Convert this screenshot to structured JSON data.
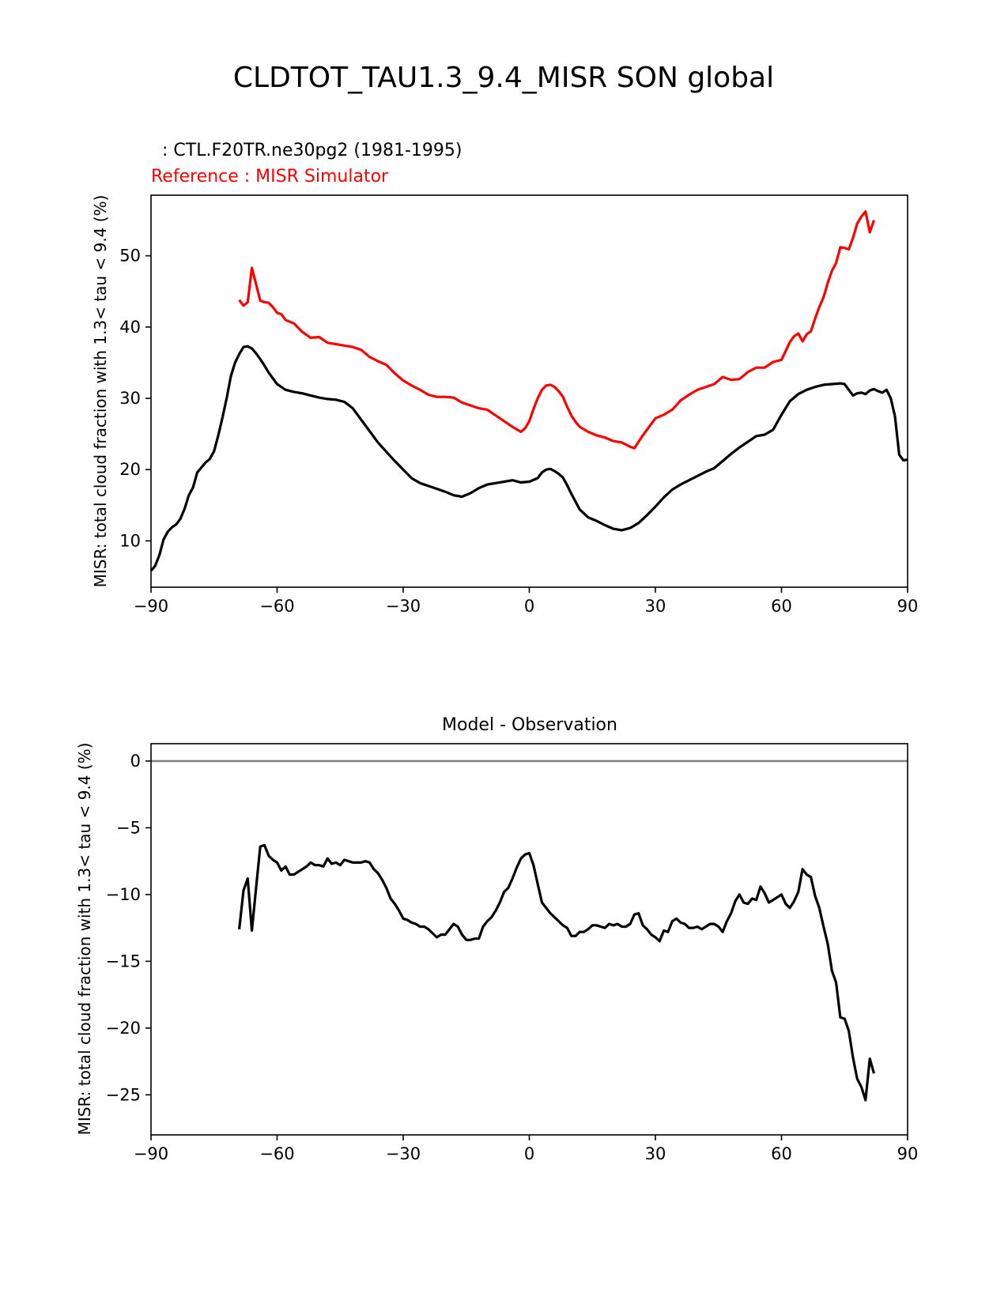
{
  "figure": {
    "title": "CLDTOT_TAU1.3_9.4_MISR SON global"
  },
  "chart_data": [
    {
      "type": "line",
      "title": "",
      "test_label": "  : CTL.F20TR.ne30pg2 (1981-1995)",
      "ref_label": "Reference : MISR Simulator",
      "xlabel": "",
      "ylabel": "MISR: total cloud fraction with 1.3< tau < 9.4 (%)",
      "xlim": [
        -90,
        90
      ],
      "ylim": [
        3.5,
        58.5
      ],
      "xticks": [
        -90,
        -60,
        -30,
        0,
        30,
        60,
        90
      ],
      "xtick_labels": [
        "−90",
        "−60",
        "−30",
        "0",
        "30",
        "60",
        "90"
      ],
      "yticks": [
        10,
        20,
        30,
        40,
        50
      ],
      "ytick_labels": [
        "10",
        "20",
        "30",
        "40",
        "50"
      ],
      "colors": {
        "test": "#000000",
        "reference": "#ff0000"
      },
      "series": [
        {
          "name": "CTL.F20TR.ne30pg2 (1981-1995)",
          "color": "#000000",
          "x": [
            -90,
            -89,
            -88,
            -87,
            -86,
            -85,
            -84,
            -83,
            -82,
            -81,
            -80,
            -79,
            -78,
            -77,
            -76,
            -75,
            -74,
            -73,
            -72,
            -71,
            -70,
            -69,
            -68,
            -67,
            -66,
            -65,
            -64,
            -63,
            -62,
            -61,
            -60,
            -58,
            -56,
            -54,
            -52,
            -50,
            -48,
            -46,
            -44,
            -42,
            -40,
            -38,
            -36,
            -34,
            -32,
            -30,
            -28,
            -26,
            -24,
            -22,
            -20,
            -18,
            -16,
            -14,
            -12,
            -10,
            -8,
            -6,
            -4,
            -2,
            0,
            2,
            3,
            4,
            5,
            6,
            7,
            8,
            9,
            10,
            12,
            14,
            16,
            18,
            20,
            22,
            24,
            26,
            28,
            30,
            32,
            34,
            36,
            38,
            40,
            42,
            44,
            46,
            48,
            50,
            52,
            54,
            56,
            58,
            60,
            62,
            64,
            66,
            68,
            70,
            72,
            74,
            75,
            76,
            77,
            78,
            79,
            80,
            81,
            82,
            83,
            84,
            85,
            86,
            87,
            88,
            89,
            90
          ],
          "y": [
            5.8,
            6.5,
            8,
            10.2,
            11.3,
            11.9,
            12.3,
            13.1,
            14.5,
            16.4,
            17.5,
            19.6,
            20.3,
            21,
            21.5,
            22.6,
            24.8,
            27.3,
            30,
            33.1,
            35,
            36.2,
            37.2,
            37.3,
            37,
            36.3,
            35.5,
            34.6,
            33.6,
            32.8,
            32,
            31.2,
            30.9,
            30.7,
            30.4,
            30.1,
            29.9,
            29.8,
            29.5,
            28.6,
            27,
            25.4,
            23.8,
            22.5,
            21.2,
            20,
            18.8,
            18.1,
            17.7,
            17.3,
            16.9,
            16.4,
            16.2,
            16.7,
            17.4,
            17.9,
            18.1,
            18.3,
            18.5,
            18.2,
            18.3,
            18.8,
            19.6,
            20,
            20.1,
            19.8,
            19.4,
            18.9,
            17.8,
            16.6,
            14.4,
            13.3,
            12.8,
            12.2,
            11.7,
            11.5,
            11.8,
            12.5,
            13.6,
            14.8,
            16.1,
            17.2,
            17.9,
            18.5,
            19.1,
            19.7,
            20.2,
            21.2,
            22.2,
            23.1,
            23.9,
            24.7,
            24.9,
            25.6,
            27.7,
            29.6,
            30.6,
            31.2,
            31.6,
            31.9,
            32,
            32.1,
            32,
            31.2,
            30.4,
            30.7,
            30.8,
            30.6,
            31.1,
            31.3,
            31,
            30.8,
            31.2,
            30,
            27.5,
            22.1,
            21.3,
            21.4
          ]
        },
        {
          "name": "MISR Simulator",
          "color": "#ff0000",
          "x": [
            -69,
            -68,
            -67,
            -66,
            -65,
            -64,
            -63,
            -62,
            -61,
            -60,
            -59,
            -58,
            -56,
            -54,
            -52,
            -50,
            -48,
            -46,
            -44,
            -42,
            -40,
            -38,
            -36,
            -34,
            -32,
            -30,
            -28,
            -26,
            -24,
            -22,
            -20,
            -18,
            -16,
            -14,
            -12,
            -10,
            -8,
            -6,
            -4,
            -2,
            -1,
            0,
            1,
            2,
            3,
            4,
            5,
            6,
            7,
            8,
            9,
            10,
            11,
            12,
            14,
            16,
            18,
            20,
            22,
            24,
            25,
            26,
            27,
            28,
            30,
            32,
            34,
            36,
            38,
            40,
            42,
            44,
            46,
            48,
            50,
            52,
            54,
            56,
            58,
            60,
            62,
            63,
            64,
            65,
            66,
            67,
            68,
            69,
            70,
            71,
            72,
            73,
            74,
            75,
            76,
            77,
            78,
            79,
            80,
            81,
            82
          ],
          "y": [
            43.8,
            43,
            43.5,
            48.3,
            46,
            43.7,
            43.5,
            43.4,
            42.8,
            42,
            41.8,
            41,
            40.5,
            39.3,
            38.5,
            38.6,
            37.8,
            37.6,
            37.4,
            37.2,
            36.8,
            35.8,
            35.2,
            34.7,
            33.5,
            32.5,
            31.8,
            31.2,
            30.5,
            30.2,
            30.2,
            30.1,
            29.4,
            29,
            28.6,
            28.4,
            27.6,
            26.8,
            26,
            25.3,
            25.8,
            26.8,
            28.5,
            30,
            31.2,
            31.8,
            31.9,
            31.6,
            31,
            30.2,
            28.8,
            27.6,
            26.7,
            26,
            25.3,
            24.8,
            24.5,
            24,
            23.8,
            23.2,
            23,
            23.9,
            24.8,
            25.6,
            27.2,
            27.7,
            28.4,
            29.7,
            30.5,
            31.2,
            31.6,
            32,
            33,
            32.6,
            32.7,
            33.7,
            34.3,
            34.3,
            35.1,
            35.4,
            37.9,
            38.7,
            39.1,
            38,
            39,
            39.4,
            41.2,
            42.8,
            44.2,
            46.2,
            47.9,
            49,
            51.2,
            51.1,
            50.9,
            52.5,
            54.5,
            55.5,
            56.2,
            53.3,
            55
          ]
        }
      ]
    },
    {
      "type": "line",
      "title": "Model - Observation",
      "xlabel": "",
      "ylabel": "MISR: total cloud fraction with 1.3< tau < 9.4 (%)",
      "xlim": [
        -90,
        90
      ],
      "ylim": [
        -28,
        1.3
      ],
      "xticks": [
        -90,
        -60,
        -30,
        0,
        30,
        60,
        90
      ],
      "xtick_labels": [
        "−90",
        "−60",
        "−30",
        "0",
        "30",
        "60",
        "90"
      ],
      "yticks": [
        0,
        -5,
        -10,
        -15,
        -20,
        -25
      ],
      "ytick_labels": [
        "0",
        "−5",
        "−10",
        "−15",
        "−20",
        "−25"
      ],
      "zero_line_color": "#808080",
      "series": [
        {
          "name": "Model - Observation",
          "color": "#000000",
          "x": [
            -69,
            -68,
            -67,
            -66,
            -65,
            -64,
            -63,
            -62,
            -61,
            -60,
            -59,
            -58,
            -57,
            -56,
            -55,
            -54,
            -53,
            -52,
            -51,
            -50,
            -49,
            -48,
            -47,
            -46,
            -45,
            -44,
            -43,
            -42,
            -41,
            -40,
            -39,
            -38,
            -37,
            -36,
            -35,
            -34,
            -33,
            -32,
            -31,
            -30,
            -29,
            -28,
            -27,
            -26,
            -25,
            -24,
            -23,
            -22,
            -21,
            -20,
            -19,
            -18,
            -17,
            -16,
            -15,
            -14,
            -13,
            -12,
            -11,
            -10,
            -9,
            -8,
            -7,
            -6,
            -5,
            -4,
            -3,
            -2,
            -1,
            0,
            1,
            2,
            3,
            4,
            5,
            6,
            7,
            8,
            9,
            10,
            11,
            12,
            13,
            14,
            15,
            16,
            17,
            18,
            19,
            20,
            21,
            22,
            23,
            24,
            25,
            26,
            27,
            28,
            29,
            30,
            31,
            32,
            33,
            34,
            35,
            36,
            37,
            38,
            39,
            40,
            41,
            42,
            43,
            44,
            45,
            46,
            47,
            48,
            49,
            50,
            51,
            52,
            53,
            54,
            55,
            56,
            57,
            58,
            59,
            60,
            61,
            62,
            63,
            64,
            65,
            66,
            67,
            68,
            69,
            70,
            71,
            72,
            73,
            74,
            75,
            76,
            77,
            78,
            79,
            80,
            81,
            82
          ],
          "y": [
            -12.6,
            -9.7,
            -8.8,
            -12.7,
            -9.5,
            -6.4,
            -6.3,
            -7.1,
            -7.4,
            -7.6,
            -8.2,
            -7.9,
            -8.5,
            -8.5,
            -8.3,
            -8.1,
            -7.9,
            -7.6,
            -7.8,
            -7.8,
            -7.9,
            -7.3,
            -7.7,
            -7.6,
            -7.8,
            -7.4,
            -7.5,
            -7.6,
            -7.6,
            -7.6,
            -7.5,
            -7.6,
            -8.1,
            -8.4,
            -8.9,
            -9.5,
            -10.3,
            -10.7,
            -11.2,
            -11.8,
            -11.9,
            -12.1,
            -12.2,
            -12.4,
            -12.4,
            -12.6,
            -12.9,
            -13.2,
            -13,
            -13,
            -12.6,
            -12.2,
            -12.4,
            -13,
            -13.4,
            -13.4,
            -13.3,
            -13.3,
            -12.4,
            -12,
            -11.7,
            -11.2,
            -10.6,
            -9.8,
            -9.5,
            -8.8,
            -8,
            -7.3,
            -7,
            -6.9,
            -7.8,
            -9.2,
            -10.6,
            -11,
            -11.4,
            -11.7,
            -12,
            -12.3,
            -12.5,
            -13.1,
            -13.1,
            -12.8,
            -12.8,
            -12.6,
            -12.3,
            -12.3,
            -12.4,
            -12.5,
            -12.2,
            -12.3,
            -12.2,
            -12.4,
            -12.4,
            -12.2,
            -11.5,
            -11.4,
            -12.3,
            -12.6,
            -13,
            -13.2,
            -13.5,
            -12.7,
            -12.8,
            -12,
            -11.8,
            -12.1,
            -12.2,
            -12.5,
            -12.5,
            -12.4,
            -12.6,
            -12.4,
            -12.2,
            -12.2,
            -12.4,
            -12.8,
            -12,
            -11.4,
            -10.5,
            -10,
            -10.6,
            -10.7,
            -10.3,
            -10.4,
            -9.4,
            -9.9,
            -10.6,
            -10.4,
            -10.2,
            -10,
            -10.7,
            -11,
            -10.5,
            -9.8,
            -8.1,
            -8.5,
            -8.7,
            -10.1,
            -11,
            -12.4,
            -13.7,
            -15.7,
            -16.6,
            -19.2,
            -19.3,
            -20.2,
            -22.2,
            -23.8,
            -24.4,
            -25.4,
            -22.3,
            -23.4
          ]
        }
      ]
    }
  ]
}
